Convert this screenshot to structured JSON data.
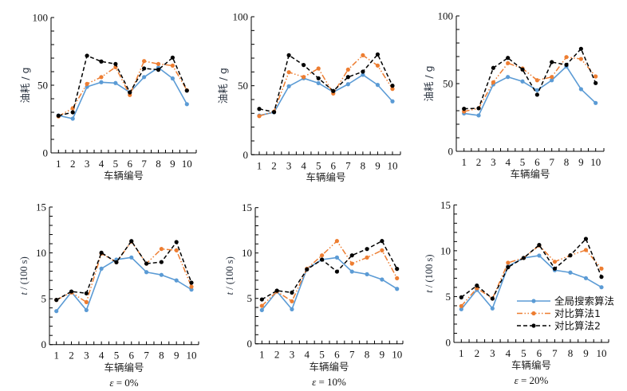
{
  "figure": {
    "legend": {
      "placement": "inside bottom-right of panel (e = 20%)",
      "items": [
        {
          "label": "全局搜索算法",
          "series_key": "global"
        },
        {
          "label": "对比算法1",
          "series_key": "cmp1"
        },
        {
          "label": "对比算法2",
          "series_key": "cmp2"
        }
      ]
    },
    "series_styles": {
      "global": {
        "color": "#5b9bd5",
        "line": "solid",
        "marker": "circle"
      },
      "cmp1": {
        "color": "#ed7d31",
        "line": "dash-dot-dot",
        "marker": "circle"
      },
      "cmp2": {
        "color": "#000000",
        "line": "dashed",
        "marker": "circle"
      }
    }
  },
  "chart_data": [
    {
      "type": "line",
      "panel": "top-left",
      "title": "",
      "xlabel": "车辆编号",
      "ylabel": "油耗 / g",
      "ylabel_parts": [
        {
          "text": "油耗 / g",
          "style": "normal"
        }
      ],
      "caption": "",
      "x": [
        1,
        2,
        3,
        4,
        5,
        6,
        7,
        8,
        9,
        10
      ],
      "x_tick_labels": [
        "1",
        "2",
        "3",
        "4",
        "5",
        "6",
        "7",
        "8",
        "9",
        "10"
      ],
      "ylim": [
        0,
        100
      ],
      "y_ticks": [
        0,
        50,
        100
      ],
      "y_tick_labels": [
        "0",
        "50",
        "100"
      ],
      "y_minor_step": 10,
      "grid": false,
      "series": [
        {
          "key": "global",
          "name": "全局搜索算法",
          "values": [
            27.6,
            25.3,
            48.8,
            52.2,
            51.6,
            44.7,
            56.0,
            63.0,
            55.0,
            36.0
          ]
        },
        {
          "key": "cmp1",
          "name": "对比算法1",
          "values": [
            27.0,
            33.0,
            51.0,
            56.0,
            63.3,
            42.8,
            67.8,
            65.7,
            64.5,
            46.3
          ]
        },
        {
          "key": "cmp2",
          "name": "对比算法2",
          "values": [
            27.5,
            30.0,
            71.8,
            67.5,
            65.7,
            44.7,
            62.4,
            61.4,
            70.4,
            46.0
          ]
        }
      ]
    },
    {
      "type": "line",
      "panel": "top-middle",
      "title": "",
      "xlabel": "车辆编号",
      "ylabel": "油耗 / g",
      "ylabel_parts": [
        {
          "text": "油耗 / g",
          "style": "normal"
        }
      ],
      "caption": "",
      "x": [
        1,
        2,
        3,
        4,
        5,
        6,
        7,
        8,
        9,
        10
      ],
      "x_tick_labels": [
        "1",
        "2",
        "3",
        "4",
        "5",
        "6",
        "7",
        "8",
        "9",
        "10"
      ],
      "ylim": [
        0,
        100
      ],
      "y_ticks": [
        0,
        50,
        100
      ],
      "y_tick_labels": [
        "0",
        "50",
        "100"
      ],
      "y_minor_step": 10,
      "grid": false,
      "series": [
        {
          "key": "global",
          "name": "全局搜索算法",
          "values": [
            28.4,
            30.8,
            49.6,
            55.4,
            51.9,
            45.4,
            51.1,
            57.9,
            50.6,
            38.7
          ]
        },
        {
          "key": "cmp1",
          "name": "对比算法1",
          "values": [
            28.0,
            31.3,
            59.8,
            56.3,
            62.5,
            44.4,
            61.7,
            72.1,
            64.6,
            47.7
          ]
        },
        {
          "key": "cmp2",
          "name": "对比算法2",
          "values": [
            33.2,
            30.9,
            72.1,
            65.0,
            55.4,
            46.2,
            56.3,
            60.2,
            72.7,
            50.0
          ]
        }
      ]
    },
    {
      "type": "line",
      "panel": "top-right",
      "title": "",
      "xlabel": "车辆编号",
      "ylabel": "油耗 / g",
      "ylabel_parts": [
        {
          "text": "油耗 / g",
          "style": "normal"
        }
      ],
      "caption": "",
      "x": [
        1,
        2,
        3,
        4,
        5,
        6,
        7,
        8,
        9,
        10
      ],
      "x_tick_labels": [
        "1",
        "2",
        "3",
        "4",
        "5",
        "6",
        "7",
        "8",
        "9",
        "10"
      ],
      "ylim": [
        0,
        100
      ],
      "y_ticks": [
        0,
        50,
        100
      ],
      "y_tick_labels": [
        "0",
        "50",
        "100"
      ],
      "y_minor_step": 10,
      "grid": false,
      "series": [
        {
          "key": "global",
          "name": "全局搜索算法",
          "values": [
            28.0,
            26.5,
            49.4,
            54.9,
            51.6,
            45.1,
            52.5,
            62.7,
            45.9,
            35.7
          ]
        },
        {
          "key": "cmp1",
          "name": "对比算法1",
          "values": [
            29.4,
            31.8,
            51.0,
            65.1,
            61.2,
            52.5,
            54.9,
            69.6,
            68.2,
            55.3
          ]
        },
        {
          "key": "cmp2",
          "name": "对比算法2",
          "values": [
            31.4,
            31.8,
            61.6,
            69.0,
            60.4,
            41.8,
            65.9,
            63.9,
            75.7,
            50.4
          ]
        }
      ]
    },
    {
      "type": "line",
      "panel": "bottom-left",
      "title": "",
      "xlabel": "车辆编号",
      "ylabel": "t / (100 s)",
      "ylabel_parts": [
        {
          "text": "t",
          "style": "italic"
        },
        {
          "text": " / (100 s)",
          "style": "normal"
        }
      ],
      "caption": "ε = 0%",
      "caption_parts": [
        {
          "text": "ε",
          "style": "italic"
        },
        {
          "text": " = 0%",
          "style": "normal"
        }
      ],
      "x": [
        1,
        2,
        3,
        4,
        5,
        6,
        7,
        8,
        9,
        10
      ],
      "x_tick_labels": [
        "1",
        "2",
        "3",
        "4",
        "5",
        "6",
        "7",
        "8",
        "9",
        "10"
      ],
      "ylim": [
        0,
        15
      ],
      "y_ticks": [
        0,
        5,
        10,
        15
      ],
      "y_tick_labels": [
        "0",
        "5",
        "10",
        "15"
      ],
      "y_minor_step": 1,
      "grid": false,
      "series": [
        {
          "key": "global",
          "name": "全局搜索算法",
          "values": [
            3.65,
            5.73,
            3.76,
            8.28,
            9.27,
            9.5,
            7.9,
            7.6,
            7.0,
            6.0
          ]
        },
        {
          "key": "cmp1",
          "name": "对比算法1",
          "values": [
            4.87,
            5.68,
            4.63,
            9.93,
            8.98,
            11.24,
            8.83,
            10.43,
            10.28,
            6.31
          ]
        },
        {
          "key": "cmp2",
          "name": "对比算法2",
          "values": [
            4.87,
            5.79,
            5.59,
            10.02,
            8.98,
            11.29,
            8.83,
            9.0,
            11.18,
            6.75
          ]
        }
      ]
    },
    {
      "type": "line",
      "panel": "bottom-middle",
      "title": "",
      "xlabel": "车辆编号",
      "ylabel": "t / (100 s)",
      "ylabel_parts": [
        {
          "text": "t",
          "style": "italic"
        },
        {
          "text": " / (100 s)",
          "style": "normal"
        }
      ],
      "caption": "ε = 10%",
      "caption_parts": [
        {
          "text": "ε",
          "style": "italic"
        },
        {
          "text": " = 10%",
          "style": "normal"
        }
      ],
      "x": [
        1,
        2,
        3,
        4,
        5,
        6,
        7,
        8,
        9,
        10
      ],
      "x_tick_labels": [
        "1",
        "2",
        "3",
        "4",
        "5",
        "6",
        "7",
        "8",
        "9",
        "10"
      ],
      "ylim": [
        0,
        15
      ],
      "y_ticks": [
        0,
        5,
        10,
        15
      ],
      "y_tick_labels": [
        "0",
        "5",
        "10",
        "15"
      ],
      "y_minor_step": 1,
      "grid": false,
      "series": [
        {
          "key": "global",
          "name": "全局搜索算法",
          "values": [
            3.71,
            5.76,
            3.8,
            8.27,
            9.27,
            9.5,
            7.95,
            7.66,
            7.08,
            6.05
          ]
        },
        {
          "key": "cmp1",
          "name": "对比算法1",
          "values": [
            4.18,
            5.76,
            4.68,
            8.27,
            9.74,
            11.32,
            8.83,
            9.5,
            10.29,
            7.22
          ]
        },
        {
          "key": "cmp2",
          "name": "对比算法2",
          "values": [
            4.88,
            5.85,
            5.64,
            8.19,
            9.27,
            7.95,
            9.74,
            10.44,
            11.32,
            8.25
          ]
        }
      ]
    },
    {
      "type": "line",
      "panel": "bottom-right",
      "title": "",
      "xlabel": "车辆编号",
      "ylabel": "t / (100 s)",
      "ylabel_parts": [
        {
          "text": "t",
          "style": "italic"
        },
        {
          "text": " / (100 s)",
          "style": "normal"
        }
      ],
      "caption": "ε = 20%",
      "caption_parts": [
        {
          "text": "ε",
          "style": "italic"
        },
        {
          "text": " = 20%",
          "style": "normal"
        }
      ],
      "x": [
        1,
        2,
        3,
        4,
        5,
        6,
        7,
        8,
        9,
        10
      ],
      "x_tick_labels": [
        "1",
        "2",
        "3",
        "4",
        "5",
        "6",
        "7",
        "8",
        "9",
        "10"
      ],
      "ylim": [
        0,
        15
      ],
      "y_ticks": [
        0,
        5,
        10,
        15
      ],
      "y_tick_labels": [
        "0",
        "5",
        "10",
        "15"
      ],
      "y_minor_step": 1,
      "grid": false,
      "legend": true,
      "series": [
        {
          "key": "global",
          "name": "全局搜索算法",
          "values": [
            3.62,
            5.73,
            3.71,
            8.31,
            9.21,
            9.47,
            7.88,
            7.62,
            7.01,
            6.02
          ]
        },
        {
          "key": "cmp1",
          "name": "对比算法1",
          "values": [
            3.97,
            5.91,
            4.78,
            8.69,
            9.21,
            10.57,
            8.8,
            9.5,
            10.08,
            8.05
          ]
        },
        {
          "key": "cmp2",
          "name": "对比算法2",
          "values": [
            4.92,
            6.2,
            4.78,
            8.2,
            9.21,
            10.63,
            8.05,
            9.5,
            11.29,
            7.15
          ]
        }
      ]
    }
  ]
}
